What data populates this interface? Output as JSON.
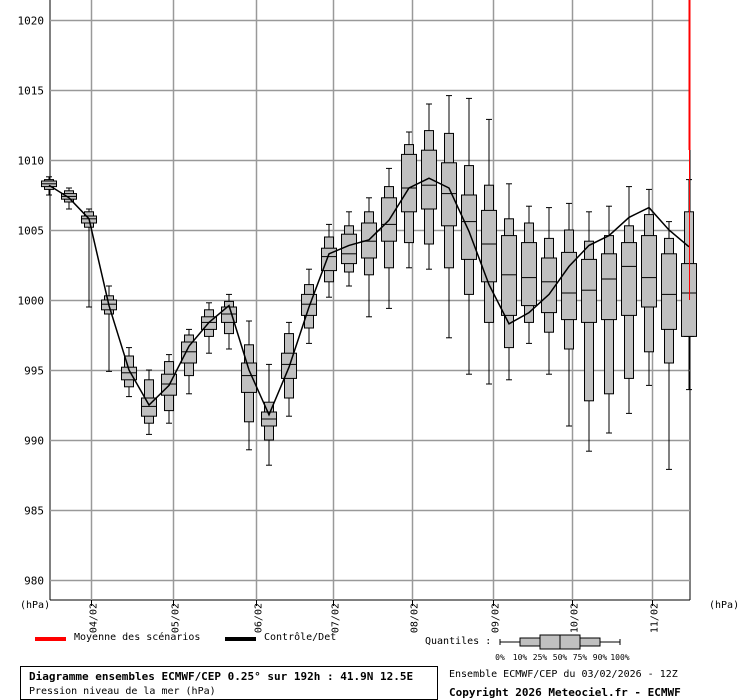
{
  "chart_data": {
    "type": "boxplot",
    "ylabel": "(hPa)",
    "ylim": [
      978,
      1022
    ],
    "yticks": [
      980,
      985,
      990,
      995,
      1000,
      1005,
      1010,
      1015,
      1020
    ],
    "x_date_labels": [
      "04/02",
      "05/02",
      "06/02",
      "07/02",
      "08/02",
      "09/02",
      "10/02",
      "11/02"
    ],
    "grid": true,
    "series": [
      {
        "name": "Moyenne des scénarios",
        "color": "#ff0000"
      },
      {
        "name": "Contrôle/Det",
        "color": "#000000"
      }
    ],
    "boxes": [
      {
        "step": 0,
        "min": 1007.5,
        "p10": 1007.9,
        "p25": 1008.1,
        "p50": 1008.3,
        "p75": 1008.5,
        "p90": 1008.6,
        "max": 1008.8
      },
      {
        "step": 1,
        "min": 1006.5,
        "p10": 1007.0,
        "p25": 1007.2,
        "p50": 1007.4,
        "p75": 1007.6,
        "p90": 1007.8,
        "max": 1008.0
      },
      {
        "step": 2,
        "min": 999.5,
        "p10": 1005.2,
        "p25": 1005.5,
        "p50": 1005.8,
        "p75": 1006.0,
        "p90": 1006.3,
        "max": 1006.5
      },
      {
        "step": 3,
        "min": 994.9,
        "p10": 999.0,
        "p25": 999.3,
        "p50": 999.7,
        "p75": 1000.0,
        "p90": 1000.3,
        "max": 1001.0
      },
      {
        "step": 4,
        "min": 993.1,
        "p10": 993.8,
        "p25": 994.3,
        "p50": 994.8,
        "p75": 995.2,
        "p90": 996.0,
        "max": 996.6
      },
      {
        "step": 5,
        "min": 990.4,
        "p10": 991.2,
        "p25": 991.7,
        "p50": 992.4,
        "p75": 993.0,
        "p90": 994.3,
        "max": 995.0
      },
      {
        "step": 6,
        "min": 991.2,
        "p10": 992.1,
        "p25": 993.2,
        "p50": 994.0,
        "p75": 994.7,
        "p90": 995.6,
        "max": 996.1
      },
      {
        "step": 7,
        "min": 993.3,
        "p10": 994.6,
        "p25": 995.5,
        "p50": 996.3,
        "p75": 997.0,
        "p90": 997.5,
        "max": 997.9
      },
      {
        "step": 8,
        "min": 996.2,
        "p10": 997.4,
        "p25": 997.9,
        "p50": 998.4,
        "p75": 998.8,
        "p90": 999.3,
        "max": 999.8
      },
      {
        "step": 9,
        "min": 996.5,
        "p10": 997.6,
        "p25": 998.4,
        "p50": 999.0,
        "p75": 999.5,
        "p90": 999.9,
        "max": 1000.4
      },
      {
        "step": 10,
        "min": 989.3,
        "p10": 991.3,
        "p25": 993.4,
        "p50": 994.6,
        "p75": 995.5,
        "p90": 996.8,
        "max": 998.5
      },
      {
        "step": 11,
        "min": 988.2,
        "p10": 990.0,
        "p25": 991.0,
        "p50": 991.5,
        "p75": 992.0,
        "p90": 992.7,
        "max": 995.4
      },
      {
        "step": 12,
        "min": 991.7,
        "p10": 993.0,
        "p25": 994.4,
        "p50": 995.4,
        "p75": 996.2,
        "p90": 997.6,
        "max": 998.4
      },
      {
        "step": 13,
        "min": 996.9,
        "p10": 998.0,
        "p25": 998.9,
        "p50": 999.7,
        "p75": 1000.4,
        "p90": 1001.1,
        "max": 1002.2
      },
      {
        "step": 14,
        "min": 1000.2,
        "p10": 1001.3,
        "p25": 1002.1,
        "p50": 1003.1,
        "p75": 1003.7,
        "p90": 1004.5,
        "max": 1005.4
      },
      {
        "step": 15,
        "min": 1001.0,
        "p10": 1002.0,
        "p25": 1002.6,
        "p50": 1003.3,
        "p75": 1004.7,
        "p90": 1005.3,
        "max": 1006.3
      },
      {
        "step": 16,
        "min": 998.8,
        "p10": 1001.8,
        "p25": 1003.0,
        "p50": 1004.2,
        "p75": 1005.5,
        "p90": 1006.3,
        "max": 1007.3
      },
      {
        "step": 17,
        "min": 999.4,
        "p10": 1002.3,
        "p25": 1004.2,
        "p50": 1005.4,
        "p75": 1007.3,
        "p90": 1008.1,
        "max": 1009.4
      },
      {
        "step": 18,
        "min": 1002.3,
        "p10": 1004.1,
        "p25": 1006.3,
        "p50": 1008.0,
        "p75": 1010.4,
        "p90": 1011.1,
        "max": 1012.0
      },
      {
        "step": 19,
        "min": 1002.2,
        "p10": 1004.0,
        "p25": 1006.5,
        "p50": 1008.2,
        "p75": 1010.7,
        "p90": 1012.1,
        "max": 1014.0
      },
      {
        "step": 20,
        "min": 997.3,
        "p10": 1002.3,
        "p25": 1005.3,
        "p50": 1007.6,
        "p75": 1009.8,
        "p90": 1011.9,
        "max": 1014.6
      },
      {
        "step": 21,
        "min": 994.7,
        "p10": 1000.4,
        "p25": 1002.9,
        "p50": 1005.6,
        "p75": 1007.5,
        "p90": 1009.6,
        "max": 1014.4
      },
      {
        "step": 22,
        "min": 994.0,
        "p10": 998.4,
        "p25": 1001.3,
        "p50": 1004.0,
        "p75": 1006.4,
        "p90": 1008.2,
        "max": 1012.9
      },
      {
        "step": 23,
        "min": 994.3,
        "p10": 996.6,
        "p25": 998.9,
        "p50": 1001.8,
        "p75": 1004.6,
        "p90": 1005.8,
        "max": 1008.3
      },
      {
        "step": 24,
        "min": 996.9,
        "p10": 998.4,
        "p25": 999.6,
        "p50": 1001.6,
        "p75": 1004.1,
        "p90": 1005.5,
        "max": 1006.7
      },
      {
        "step": 25,
        "min": 994.7,
        "p10": 997.7,
        "p25": 999.1,
        "p50": 1001.3,
        "p75": 1003.0,
        "p90": 1004.4,
        "max": 1006.6
      },
      {
        "step": 26,
        "min": 991.0,
        "p10": 996.5,
        "p25": 998.6,
        "p50": 1000.5,
        "p75": 1003.4,
        "p90": 1005.0,
        "max": 1006.9
      },
      {
        "step": 27,
        "min": 989.2,
        "p10": 992.8,
        "p25": 998.4,
        "p50": 1000.7,
        "p75": 1002.9,
        "p90": 1004.2,
        "max": 1006.3
      },
      {
        "step": 28,
        "min": 990.5,
        "p10": 993.3,
        "p25": 998.6,
        "p50": 1001.5,
        "p75": 1003.3,
        "p90": 1004.6,
        "max": 1006.7
      },
      {
        "step": 29,
        "min": 991.9,
        "p10": 994.4,
        "p25": 998.9,
        "p50": 1002.4,
        "p75": 1004.1,
        "p90": 1005.3,
        "max": 1008.1
      },
      {
        "step": 30,
        "min": 993.9,
        "p10": 996.3,
        "p25": 999.5,
        "p50": 1001.6,
        "p75": 1004.6,
        "p90": 1006.1,
        "max": 1007.9
      },
      {
        "step": 31,
        "min": 987.9,
        "p10": 995.5,
        "p25": 997.9,
        "p50": 1000.4,
        "p75": 1003.3,
        "p90": 1004.4,
        "max": 1005.6
      },
      {
        "step": 32,
        "min": 993.6,
        "p10": 997.4,
        "p25": 997.4,
        "p50": 1000.5,
        "p75": 1002.6,
        "p90": 1006.3,
        "max": 1008.6
      }
    ],
    "control_line": [
      1008.2,
      1007.3,
      1005.8,
      999.6,
      995.0,
      992.5,
      993.9,
      996.7,
      998.4,
      999.6,
      995.0,
      991.8,
      995.2,
      999.5,
      1003.3,
      1003.9,
      1004.3,
      1005.7,
      1008.0,
      1008.7,
      1008.0,
      1004.9,
      1001.1,
      998.3,
      999.1,
      1000.4,
      1002.4,
      1003.9,
      1004.6,
      1005.9,
      1006.6,
      1005.0,
      1003.8
    ]
  },
  "legend": {
    "mean_label": "Moyenne des scénarios",
    "control_label": "Contrôle/Det",
    "quantiles_label": "Quantiles :",
    "quantile_ticks": [
      "0%",
      "10%",
      "25%",
      "50%",
      "75%",
      "90%",
      "100%"
    ]
  },
  "footer": {
    "title": "Diagramme ensembles ECMWF/CEP 0.25° sur 192h : 41.9N 12.5E",
    "subtitle": "Pression niveau de la mer (hPa)",
    "run_info": "Ensemble ECMWF/CEP du 03/02/2026 - 12Z",
    "copyright": "Copyright 2026 Meteociel.fr - ECMWF"
  },
  "axis": {
    "unit_left": "(hPa)",
    "unit_right": "(hPa)"
  },
  "colors": {
    "mean_line": "#ff0000",
    "control_line": "#000000",
    "box_fill": "#c0c0c0",
    "grid": "#999999"
  }
}
